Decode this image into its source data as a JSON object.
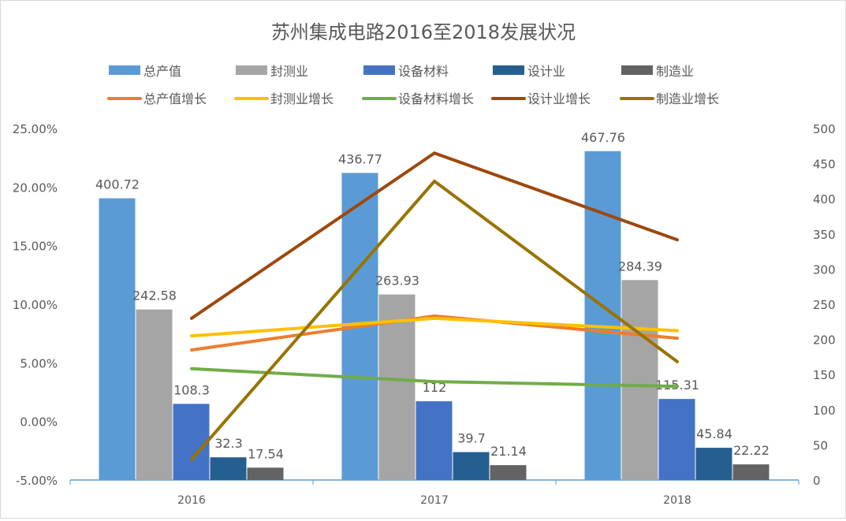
{
  "chart_data": {
    "type": "bar+line",
    "title": "苏州集成电路2016至2018发展状况",
    "categories": [
      "2016",
      "2017",
      "2018"
    ],
    "bar_series": [
      {
        "name": "总产值",
        "color": "#5B9BD5",
        "values": [
          400.72,
          436.77,
          467.76
        ]
      },
      {
        "name": "封测业",
        "color": "#A5A5A5",
        "values": [
          242.58,
          263.93,
          284.39
        ]
      },
      {
        "name": "设备材料",
        "color": "#4472C4",
        "values": [
          108.3,
          112,
          115.31
        ]
      },
      {
        "name": "设计业",
        "color": "#255E91",
        "values": [
          32.3,
          39.7,
          45.84
        ]
      },
      {
        "name": "制造业",
        "color": "#636363",
        "values": [
          17.54,
          21.14,
          22.22
        ]
      }
    ],
    "line_series": [
      {
        "name": "总产值增长",
        "color": "#ED7D31",
        "values": [
          6.1,
          9.0,
          7.1
        ]
      },
      {
        "name": "封测业增长",
        "color": "#FFC000",
        "values": [
          7.3,
          8.8,
          7.75
        ]
      },
      {
        "name": "设备材料增长",
        "color": "#70AD47",
        "values": [
          4.5,
          3.4,
          3.0
        ]
      },
      {
        "name": "设计业增长",
        "color": "#9E480E",
        "values": [
          8.8,
          22.9,
          15.5
        ]
      },
      {
        "name": "制造业增长",
        "color": "#997300",
        "values": [
          -3.25,
          20.5,
          5.1
        ]
      }
    ],
    "left_axis": {
      "ylim": [
        -5,
        25
      ],
      "ticks": [
        "-5.00%",
        "0.00%",
        "5.00%",
        "10.00%",
        "15.00%",
        "20.00%",
        "25.00%"
      ]
    },
    "right_axis": {
      "ylim": [
        0,
        500
      ],
      "ticks": [
        "0",
        "50",
        "100",
        "150",
        "200",
        "250",
        "300",
        "350",
        "400",
        "450",
        "500"
      ]
    },
    "legend_placement": "top"
  }
}
